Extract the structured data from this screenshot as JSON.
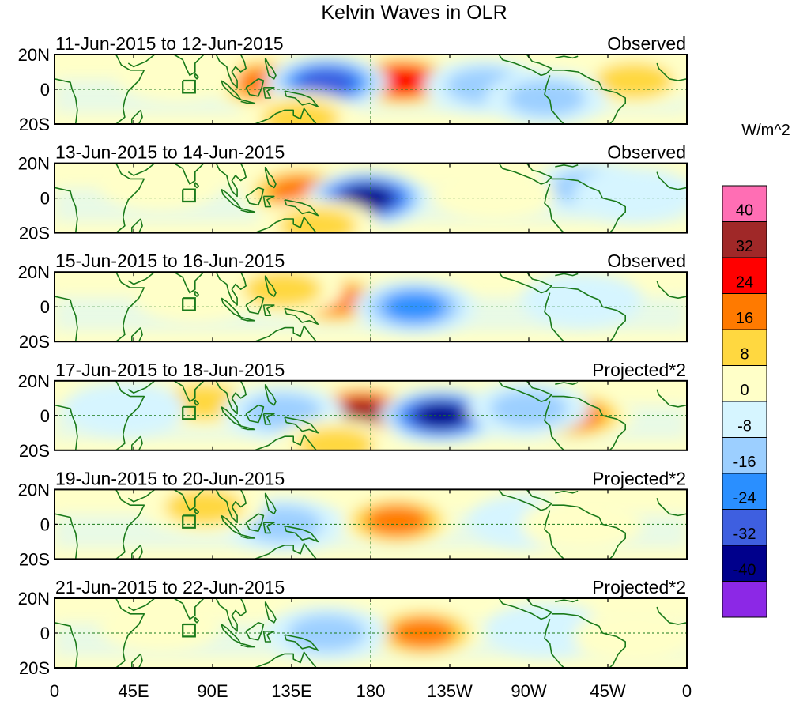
{
  "title": "Kelvin Waves in OLR",
  "units_label": "W/m^2",
  "chart_data": {
    "type": "heatmap",
    "title": "Kelvin Waves in OLR",
    "variable": "OLR anomaly (Kelvin-wave filtered)",
    "units": "W/m^2",
    "x_ticks": [
      "0",
      "45E",
      "90E",
      "135E",
      "180",
      "135W",
      "90W",
      "45W",
      "0"
    ],
    "x_tick_values": [
      0,
      45,
      90,
      135,
      180,
      225,
      270,
      315,
      360
    ],
    "y_ticks": [
      "20N",
      "0",
      "20S"
    ],
    "y_tick_values": [
      20,
      0,
      -20
    ],
    "xlim": [
      0,
      360
    ],
    "ylim": [
      -20,
      20
    ],
    "colorbar": {
      "labels": [
        "40",
        "32",
        "24",
        "16",
        "8",
        "0",
        "-8",
        "-16",
        "-24",
        "-32",
        "-40"
      ],
      "levels": [
        40,
        32,
        24,
        16,
        8,
        0,
        -8,
        -16,
        -24,
        -32,
        -40
      ],
      "colors": [
        "#ff6eb4",
        "#a02828",
        "#ff0000",
        "#ff7a00",
        "#ffd840",
        "#ffffc8",
        "#d6f5ff",
        "#9ccfff",
        "#2a8fff",
        "#3e5fe0",
        "#00008c",
        "#8c28e6"
      ]
    },
    "land_color": "#1a7a1a",
    "panels": [
      {
        "date_label": "11-Jun-2015 to 12-Jun-2015",
        "type_label": "Observed",
        "anomalies": [
          {
            "lon": 120,
            "lat": 4,
            "value": 24
          },
          {
            "lon": 198,
            "lat": 5,
            "value": 28
          },
          {
            "lon": 155,
            "lat": 4,
            "value": -32
          },
          {
            "lon": 140,
            "lat": -17,
            "value": 16
          },
          {
            "lon": 70,
            "lat": 8,
            "value": 8
          },
          {
            "lon": 330,
            "lat": 5,
            "value": 10
          },
          {
            "lon": 245,
            "lat": 2,
            "value": -10
          },
          {
            "lon": 280,
            "lat": -5,
            "value": -10
          }
        ]
      },
      {
        "date_label": "13-Jun-2015 to 14-Jun-2015",
        "type_label": "Observed",
        "anomalies": [
          {
            "lon": 140,
            "lat": 4,
            "value": 18
          },
          {
            "lon": 178,
            "lat": 0,
            "value": -34
          },
          {
            "lon": 150,
            "lat": -16,
            "value": 12
          },
          {
            "lon": 60,
            "lat": 8,
            "value": 8
          },
          {
            "lon": 305,
            "lat": 6,
            "value": -14
          },
          {
            "lon": 250,
            "lat": 2,
            "value": 6
          },
          {
            "lon": 330,
            "lat": 2,
            "value": -6
          }
        ]
      },
      {
        "date_label": "15-Jun-2015 to 16-Jun-2015",
        "type_label": "Observed",
        "anomalies": [
          {
            "lon": 160,
            "lat": 4,
            "value": 18
          },
          {
            "lon": 205,
            "lat": 0,
            "value": -22
          },
          {
            "lon": 80,
            "lat": 6,
            "value": 8
          },
          {
            "lon": 300,
            "lat": 4,
            "value": -6
          },
          {
            "lon": 130,
            "lat": 10,
            "value": 10
          }
        ]
      },
      {
        "date_label": "17-Jun-2015 to 18-Jun-2015",
        "type_label": "Projected*2",
        "anomalies": [
          {
            "lon": 175,
            "lat": 2,
            "value": 34
          },
          {
            "lon": 220,
            "lat": 0,
            "value": -34
          },
          {
            "lon": 85,
            "lat": 8,
            "value": 14
          },
          {
            "lon": 295,
            "lat": 0,
            "value": 20
          },
          {
            "lon": 270,
            "lat": 4,
            "value": -14
          },
          {
            "lon": 130,
            "lat": 2,
            "value": -12
          },
          {
            "lon": 40,
            "lat": 4,
            "value": -8
          },
          {
            "lon": 160,
            "lat": -17,
            "value": 10
          }
        ]
      },
      {
        "date_label": "19-Jun-2015 to 20-Jun-2015",
        "type_label": "Projected*2",
        "anomalies": [
          {
            "lon": 195,
            "lat": 2,
            "value": 22
          },
          {
            "lon": 130,
            "lat": 0,
            "value": -16
          },
          {
            "lon": 85,
            "lat": 10,
            "value": 10
          },
          {
            "lon": 270,
            "lat": 2,
            "value": -8
          },
          {
            "lon": 300,
            "lat": 0,
            "value": 6
          }
        ]
      },
      {
        "date_label": "21-Jun-2015 to 22-Jun-2015",
        "type_label": "Projected*2",
        "anomalies": [
          {
            "lon": 210,
            "lat": 0,
            "value": 18
          },
          {
            "lon": 155,
            "lat": 0,
            "value": -12
          },
          {
            "lon": 60,
            "lat": 4,
            "value": 8
          },
          {
            "lon": 280,
            "lat": 2,
            "value": -8
          },
          {
            "lon": 330,
            "lat": -2,
            "value": 6
          }
        ]
      }
    ]
  }
}
